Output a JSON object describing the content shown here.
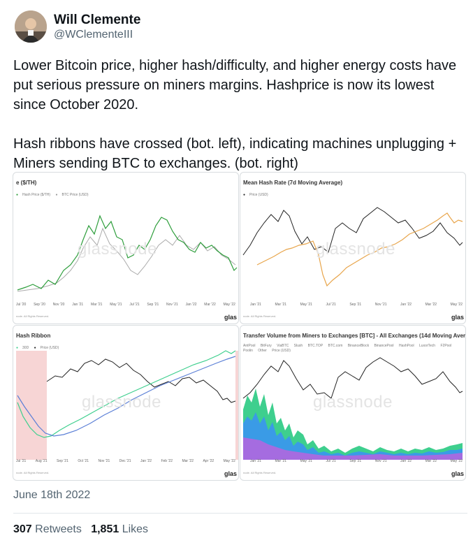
{
  "author": {
    "name": "Will Clemente",
    "handle": "@WClementeIII"
  },
  "tweet": {
    "paragraph1": "Lower Bitcoin price, higher hash/difficulty, and higher energy costs have put serious pressure on miners margins. Hashprice is now its lowest since October 2020.",
    "paragraph2": "Hash ribbons have crossed (bot. left), indicating machines unplugging + Miners sending BTC to exchanges. (bot. right)"
  },
  "media": {
    "watermark": "glassnode",
    "logo": "glas",
    "panels": [
      {
        "title": "e ($/TH)",
        "legend": [
          "Hash Price ($/TH)",
          "BTC Price (USD)"
        ],
        "xticks": [
          "Jul '20",
          "Sep '20",
          "Nov '20",
          "Jan '21",
          "Mar '21",
          "May '21",
          "Jul '21",
          "Sep '21",
          "Nov '21",
          "Jan '22",
          "Mar '22",
          "May '22"
        ],
        "footer": "node. All Rights Reserved."
      },
      {
        "title": "Mean Hash Rate (7d Moving Average)",
        "legend": [
          "Price (USD)"
        ],
        "xticks": [
          "Jan '21",
          "Mar '21",
          "May '21",
          "Jul '21",
          "Sep '21",
          "Nov '21",
          "Jan '22",
          "Mar '22",
          "May '22"
        ],
        "footer": "node. All Rights Reserved."
      },
      {
        "title": "Hash Ribbon",
        "legend": [
          "30D",
          "Price (USD)"
        ],
        "xticks": [
          "Jul '21",
          "Aug '21",
          "Sep '21",
          "Oct '21",
          "Nov '21",
          "Dec '21",
          "Jan '22",
          "Feb '22",
          "Mar '22",
          "Apr '22",
          "May '22"
        ],
        "footer": "node. All Rights Reserved."
      },
      {
        "title": "Transfer Volume from Miners to Exchanges [BTC] - All Exchanges (14d Moving Average)",
        "legend": [
          "AntPool",
          "BitFury",
          "ViaBTC",
          "Slush",
          "BTC.TOP",
          "BTC.com",
          "BinanceBlock",
          "BinancePool",
          "HashPool",
          "LuxorTech",
          "F2Pool",
          "Poolin",
          "Other",
          "Price (USD)"
        ],
        "xticks": [
          "Jan '21",
          "Mar '21",
          "May '21",
          "Jul '21",
          "Sep '21",
          "Nov '21",
          "Jan '22",
          "Mar '22",
          "May '22"
        ],
        "footer": "node. All Rights Reserved."
      }
    ]
  },
  "colors": {
    "hash_price": "#2e9e3c",
    "btc_price_gray": "#999999",
    "btc_price_black": "#222222",
    "hash_rate": "#e8a54b",
    "ribbon_30d": "#3ecf8e",
    "ribbon_60d": "#5b7fd6",
    "capitulation_band": "#f7d5d5"
  },
  "date": "June 18th 2022",
  "stats": {
    "retweets_count": "307",
    "retweets_label": "Retweets",
    "likes_count": "1,851",
    "likes_label": "Likes"
  }
}
